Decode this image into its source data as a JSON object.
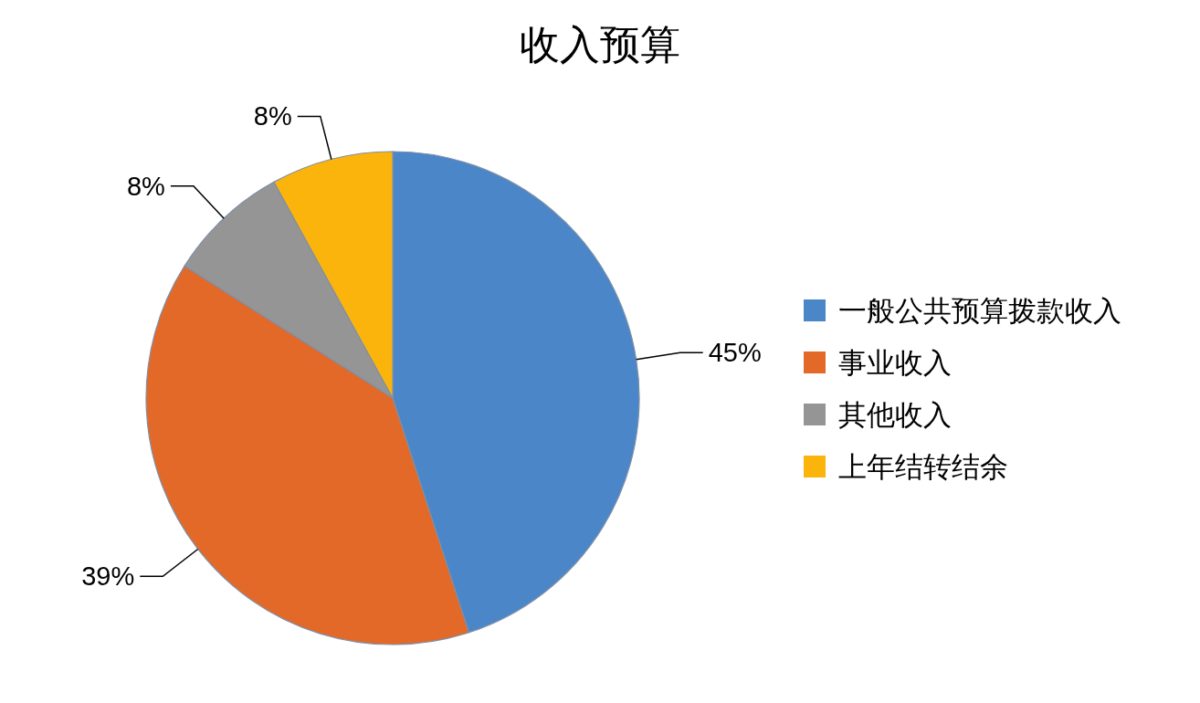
{
  "chart_data": {
    "type": "pie",
    "title": "收入预算",
    "categories": [
      "一般公共预算拨款收入",
      "事业收入",
      "其他收入",
      "上年结转结余"
    ],
    "values": [
      45,
      39,
      8,
      8
    ],
    "colors": [
      "#4a86c8",
      "#e36928",
      "#959595",
      "#fbb40c"
    ],
    "value_labels": [
      "45%",
      "39%",
      "8%",
      "8%"
    ],
    "legend": "right"
  }
}
